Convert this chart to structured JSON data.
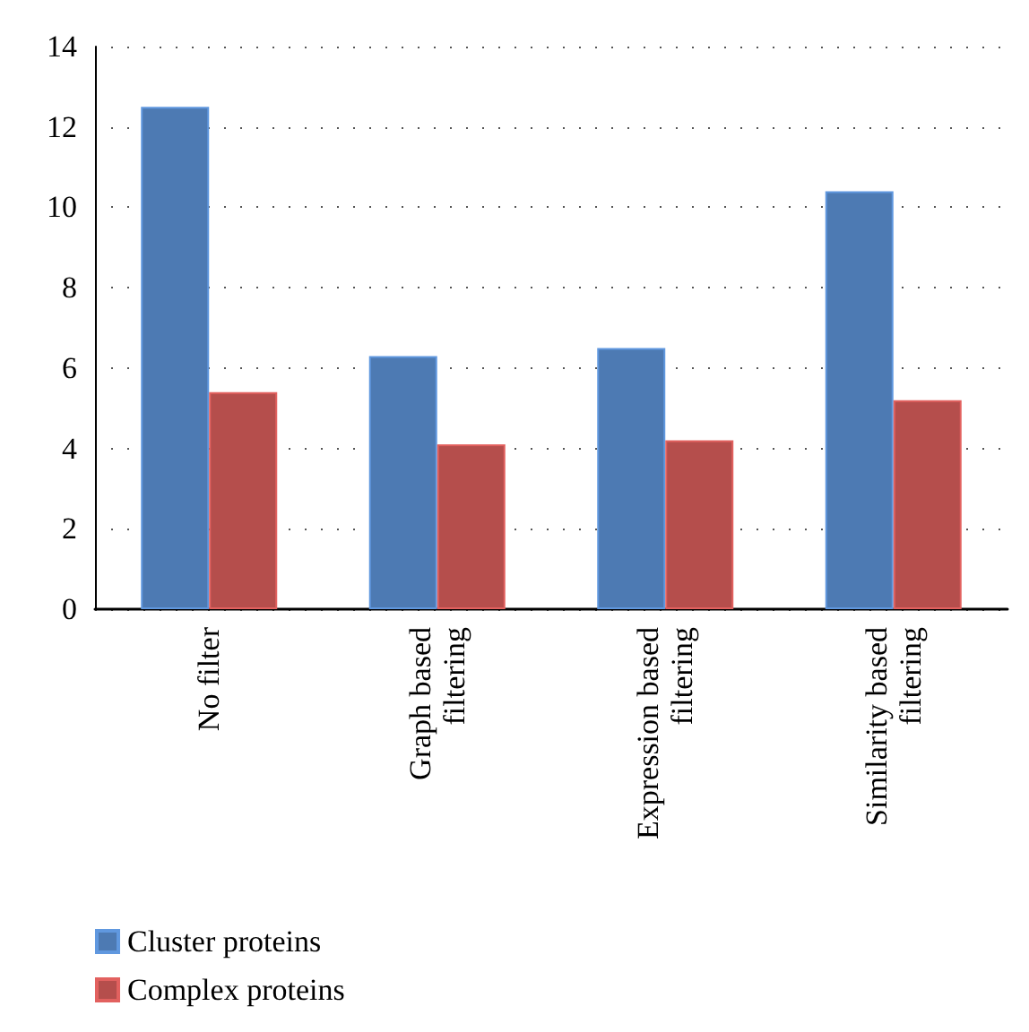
{
  "chart_data": {
    "type": "bar",
    "categories": [
      "No filter",
      "Graph based\nfiltering",
      "Expression based\nfiltering",
      "Similarity based\nfiltering"
    ],
    "series": [
      {
        "name": "Cluster proteins",
        "color": "#4d7ab3",
        "values": [
          12.5,
          6.3,
          6.5,
          10.4
        ]
      },
      {
        "name": "Complex proteins",
        "color": "#b54e4c",
        "values": [
          5.4,
          4.1,
          4.2,
          5.2
        ]
      }
    ],
    "ylim": [
      0,
      14
    ],
    "yticks": [
      0,
      2,
      4,
      6,
      8,
      10,
      12,
      14
    ],
    "grid": "y",
    "legend": "bottom left"
  }
}
